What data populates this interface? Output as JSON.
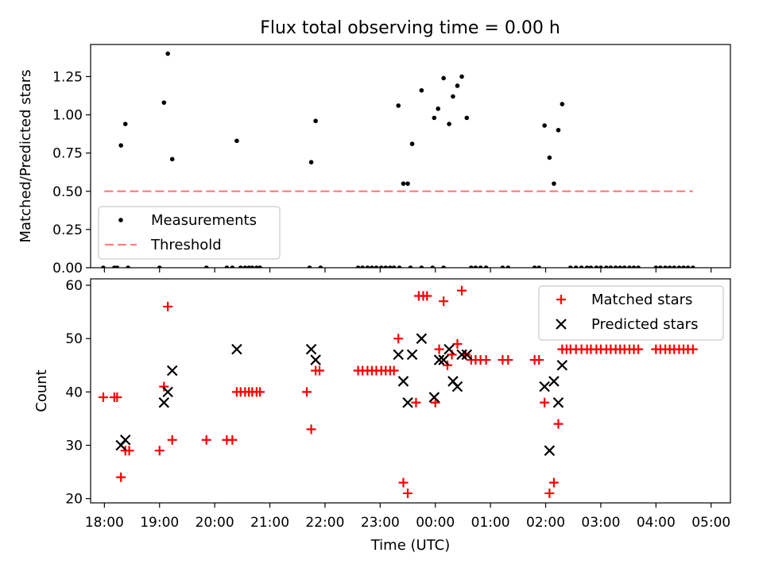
{
  "chart_data": [
    {
      "type": "scatter",
      "title": "Flux total observing time = 0.00 h",
      "xlabel": "",
      "ylabel": "Matched/Predicted stars",
      "xlim": [
        17.75,
        29.35
      ],
      "ylim": [
        0,
        1.46
      ],
      "yticks": [
        0,
        0.25,
        0.5,
        0.75,
        1.0,
        1.25
      ],
      "ytick_labels": [
        "0.00",
        "0.25",
        "0.50",
        "0.75",
        "1.00",
        "1.25"
      ],
      "legend_position": "lower-left",
      "series": [
        {
          "name": "Measurements",
          "kind": "dot",
          "color": "#000000",
          "points": [
            [
              17.98,
              0
            ],
            [
              18.18,
              0
            ],
            [
              18.23,
              0
            ],
            [
              18.43,
              0
            ],
            [
              19.0,
              0
            ],
            [
              19.85,
              0
            ],
            [
              20.22,
              0
            ],
            [
              20.32,
              0
            ],
            [
              20.47,
              0
            ],
            [
              20.55,
              0
            ],
            [
              20.62,
              0
            ],
            [
              20.68,
              0
            ],
            [
              20.76,
              0
            ],
            [
              20.82,
              0
            ],
            [
              21.72,
              0
            ],
            [
              21.92,
              0
            ],
            [
              22.6,
              0
            ],
            [
              22.68,
              0
            ],
            [
              22.77,
              0
            ],
            [
              22.85,
              0
            ],
            [
              22.93,
              0
            ],
            [
              23.02,
              0
            ],
            [
              23.1,
              0
            ],
            [
              23.18,
              0
            ],
            [
              23.25,
              0
            ],
            [
              23.35,
              0
            ],
            [
              23.55,
              0
            ],
            [
              23.75,
              0
            ],
            [
              23.95,
              0
            ],
            [
              24.15,
              0
            ],
            [
              24.65,
              0
            ],
            [
              24.73,
              0
            ],
            [
              24.82,
              0
            ],
            [
              24.92,
              0
            ],
            [
              25.22,
              0
            ],
            [
              25.32,
              0
            ],
            [
              25.8,
              0
            ],
            [
              25.88,
              0
            ],
            [
              26.45,
              0
            ],
            [
              26.55,
              0
            ],
            [
              26.65,
              0
            ],
            [
              26.75,
              0
            ],
            [
              26.82,
              0
            ],
            [
              26.92,
              0
            ],
            [
              27.0,
              0
            ],
            [
              27.1,
              0
            ],
            [
              27.18,
              0
            ],
            [
              27.27,
              0
            ],
            [
              27.35,
              0
            ],
            [
              27.43,
              0
            ],
            [
              27.52,
              0
            ],
            [
              27.6,
              0
            ],
            [
              27.68,
              0
            ],
            [
              28.0,
              0
            ],
            [
              28.08,
              0
            ],
            [
              28.17,
              0
            ],
            [
              28.25,
              0
            ],
            [
              28.33,
              0
            ],
            [
              28.42,
              0
            ],
            [
              28.5,
              0
            ],
            [
              28.58,
              0
            ],
            [
              28.67,
              0
            ],
            [
              18.3,
              0.8
            ],
            [
              18.38,
              0.94
            ],
            [
              19.08,
              1.08
            ],
            [
              19.15,
              1.4
            ],
            [
              19.23,
              0.71
            ],
            [
              20.4,
              0.83
            ],
            [
              21.75,
              0.69
            ],
            [
              21.83,
              0.96
            ],
            [
              23.33,
              1.06
            ],
            [
              23.42,
              0.55
            ],
            [
              23.5,
              0.55
            ],
            [
              23.58,
              0.81
            ],
            [
              23.75,
              1.16
            ],
            [
              23.98,
              0.98
            ],
            [
              24.05,
              1.04
            ],
            [
              24.15,
              1.24
            ],
            [
              24.25,
              0.94
            ],
            [
              24.32,
              1.12
            ],
            [
              24.4,
              1.19
            ],
            [
              24.48,
              1.25
            ],
            [
              24.57,
              0.98
            ],
            [
              25.98,
              0.93
            ],
            [
              26.07,
              0.72
            ],
            [
              26.15,
              0.55
            ],
            [
              26.23,
              0.9
            ],
            [
              26.3,
              1.07
            ]
          ]
        },
        {
          "name": "Threshold",
          "kind": "dashed-line",
          "color": "#ff8080",
          "points": [
            [
              18.0,
              0.5
            ],
            [
              28.67,
              0.5
            ]
          ]
        }
      ]
    },
    {
      "type": "scatter",
      "title": "",
      "xlabel": "Time (UTC)",
      "ylabel": "Count",
      "xlim": [
        17.75,
        29.35
      ],
      "ylim": [
        19.2,
        61.2
      ],
      "yticks": [
        20,
        30,
        40,
        50,
        60
      ],
      "ytick_labels": [
        "20",
        "30",
        "40",
        "50",
        "60"
      ],
      "xticks": [
        18,
        19,
        20,
        21,
        22,
        23,
        24,
        25,
        26,
        27,
        28,
        29
      ],
      "xtick_labels": [
        "18:00",
        "19:00",
        "20:00",
        "21:00",
        "22:00",
        "23:00",
        "00:00",
        "01:00",
        "02:00",
        "03:00",
        "04:00",
        "05:00"
      ],
      "legend_position": "top-right",
      "series": [
        {
          "name": "Matched stars",
          "kind": "plus",
          "color": "#ff0000",
          "points": [
            [
              17.98,
              39
            ],
            [
              18.18,
              39
            ],
            [
              18.23,
              39
            ],
            [
              18.3,
              24
            ],
            [
              18.38,
              29
            ],
            [
              18.45,
              29
            ],
            [
              19.0,
              29
            ],
            [
              19.08,
              41
            ],
            [
              19.15,
              56
            ],
            [
              19.23,
              31
            ],
            [
              19.85,
              31
            ],
            [
              20.22,
              31
            ],
            [
              20.32,
              31
            ],
            [
              20.4,
              40
            ],
            [
              20.47,
              40
            ],
            [
              20.55,
              40
            ],
            [
              20.62,
              40
            ],
            [
              20.68,
              40
            ],
            [
              20.76,
              40
            ],
            [
              20.82,
              40
            ],
            [
              21.67,
              40
            ],
            [
              21.75,
              33
            ],
            [
              21.83,
              44
            ],
            [
              21.9,
              44
            ],
            [
              22.6,
              44
            ],
            [
              22.68,
              44
            ],
            [
              22.77,
              44
            ],
            [
              22.85,
              44
            ],
            [
              22.93,
              44
            ],
            [
              23.02,
              44
            ],
            [
              23.1,
              44
            ],
            [
              23.18,
              44
            ],
            [
              23.25,
              44
            ],
            [
              23.33,
              50
            ],
            [
              23.42,
              23
            ],
            [
              23.5,
              21
            ],
            [
              23.65,
              38
            ],
            [
              23.7,
              58
            ],
            [
              23.78,
              58
            ],
            [
              23.85,
              58
            ],
            [
              24.0,
              38
            ],
            [
              24.07,
              48
            ],
            [
              24.15,
              57
            ],
            [
              24.22,
              45
            ],
            [
              24.3,
              47
            ],
            [
              24.4,
              49
            ],
            [
              24.48,
              59
            ],
            [
              24.55,
              47
            ],
            [
              24.65,
              46
            ],
            [
              24.73,
              46
            ],
            [
              24.82,
              46
            ],
            [
              24.92,
              46
            ],
            [
              25.22,
              46
            ],
            [
              25.32,
              46
            ],
            [
              25.8,
              46
            ],
            [
              25.88,
              46
            ],
            [
              25.98,
              38
            ],
            [
              26.07,
              21
            ],
            [
              26.15,
              23
            ],
            [
              26.23,
              34
            ],
            [
              26.3,
              48
            ],
            [
              26.38,
              48
            ],
            [
              26.45,
              48
            ],
            [
              26.55,
              48
            ],
            [
              26.65,
              48
            ],
            [
              26.75,
              48
            ],
            [
              26.82,
              48
            ],
            [
              26.92,
              48
            ],
            [
              27.0,
              48
            ],
            [
              27.1,
              48
            ],
            [
              27.18,
              48
            ],
            [
              27.27,
              48
            ],
            [
              27.35,
              48
            ],
            [
              27.43,
              48
            ],
            [
              27.52,
              48
            ],
            [
              27.6,
              48
            ],
            [
              27.68,
              48
            ],
            [
              28.0,
              48
            ],
            [
              28.08,
              48
            ],
            [
              28.17,
              48
            ],
            [
              28.25,
              48
            ],
            [
              28.33,
              48
            ],
            [
              28.42,
              48
            ],
            [
              28.5,
              48
            ],
            [
              28.58,
              48
            ],
            [
              28.67,
              48
            ]
          ]
        },
        {
          "name": "Predicted stars",
          "kind": "x",
          "color": "#000000",
          "points": [
            [
              18.3,
              30
            ],
            [
              18.38,
              31
            ],
            [
              19.08,
              38
            ],
            [
              19.15,
              40
            ],
            [
              19.23,
              44
            ],
            [
              20.4,
              48
            ],
            [
              21.75,
              48
            ],
            [
              21.83,
              46
            ],
            [
              23.33,
              47
            ],
            [
              23.42,
              42
            ],
            [
              23.5,
              38
            ],
            [
              23.58,
              47
            ],
            [
              23.75,
              50
            ],
            [
              23.98,
              39
            ],
            [
              24.07,
              46
            ],
            [
              24.15,
              46
            ],
            [
              24.25,
              48
            ],
            [
              24.32,
              42
            ],
            [
              24.4,
              41
            ],
            [
              24.48,
              47
            ],
            [
              24.57,
              47
            ],
            [
              25.98,
              41
            ],
            [
              26.07,
              29
            ],
            [
              26.15,
              42
            ],
            [
              26.23,
              38
            ],
            [
              26.3,
              45
            ]
          ]
        }
      ]
    }
  ]
}
